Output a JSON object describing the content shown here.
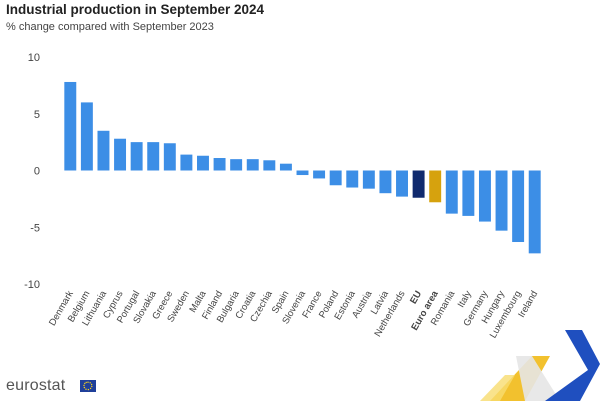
{
  "chart_data": {
    "type": "bar",
    "title": "Industrial production in September 2024",
    "subtitle": "% change compared with September 2023",
    "ylim": [
      -10,
      10
    ],
    "yticks": [
      10,
      5,
      0,
      -5,
      -10
    ],
    "grid": false,
    "legend": "none",
    "categories": [
      "Denmark",
      "Belgium",
      "Lithuania",
      "Cyprus",
      "Portugal",
      "Slovakia",
      "Greece",
      "Sweden",
      "Malta",
      "Finland",
      "Bulgaria",
      "Croatia",
      "Czechia",
      "Spain",
      "Slovenia",
      "France",
      "Poland",
      "Estonia",
      "Austria",
      "Latvia",
      "Netherlands",
      "EU",
      "Euro area",
      "Romania",
      "Italy",
      "Germany",
      "Hungary",
      "Luxembourg",
      "Ireland"
    ],
    "values": [
      7.8,
      6.0,
      3.5,
      2.8,
      2.5,
      2.5,
      2.4,
      1.4,
      1.3,
      1.1,
      1.0,
      1.0,
      0.9,
      0.6,
      -0.4,
      -0.7,
      -1.3,
      -1.5,
      -1.6,
      -2.0,
      -2.3,
      -2.4,
      -2.8,
      -3.8,
      -4.0,
      -4.5,
      -5.3,
      -6.3,
      -7.3
    ],
    "highlight": {
      "EU": "#102a6e",
      "Euro area": "#d6a20e"
    },
    "bold_labels": [
      "EU",
      "Euro area"
    ]
  },
  "colors": {
    "bar": "#3c8ee6",
    "eu": "#102a6e",
    "euro_area": "#d6a20e"
  },
  "footer": {
    "logo_text": "eurostat",
    "logo_icon": "eu-flag-icon"
  }
}
